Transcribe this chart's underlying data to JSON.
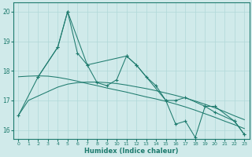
{
  "xlabel": "Humidex (Indice chaleur)",
  "xlim": [
    -0.5,
    23.5
  ],
  "ylim": [
    15.7,
    20.3
  ],
  "yticks": [
    16,
    17,
    18,
    19,
    20
  ],
  "xticks": [
    0,
    1,
    2,
    3,
    4,
    5,
    6,
    7,
    8,
    9,
    10,
    11,
    12,
    13,
    14,
    15,
    16,
    17,
    18,
    19,
    20,
    21,
    22,
    23
  ],
  "bg_color": "#d0eaea",
  "grid_color": "#b0d8d8",
  "line_color": "#1e7b6e",
  "line1": {
    "x": [
      2,
      4,
      5,
      6,
      7,
      8,
      9,
      10,
      11,
      12,
      13,
      14,
      15,
      16,
      17,
      19,
      20,
      22,
      23
    ],
    "y": [
      17.8,
      18.8,
      20.0,
      18.6,
      18.2,
      17.6,
      17.5,
      17.7,
      18.5,
      18.2,
      17.8,
      17.5,
      17.0,
      17.0,
      17.1,
      16.8,
      16.8,
      16.3,
      15.85
    ]
  },
  "line2": {
    "x": [
      0,
      2,
      4,
      5,
      7,
      11,
      12,
      15,
      16,
      17,
      18,
      19,
      20,
      22,
      23
    ],
    "y": [
      16.5,
      17.8,
      18.8,
      20.0,
      18.2,
      18.5,
      18.2,
      17.0,
      16.2,
      16.3,
      15.75,
      16.8,
      16.6,
      16.3,
      15.85
    ]
  },
  "line3": {
    "x": [
      0,
      1,
      2,
      3,
      4,
      5,
      6,
      7,
      8,
      9,
      10,
      11,
      12,
      13,
      14,
      15,
      16,
      17,
      18,
      19,
      20,
      21,
      22,
      23
    ],
    "y": [
      17.8,
      17.82,
      17.83,
      17.82,
      17.78,
      17.72,
      17.65,
      17.57,
      17.5,
      17.42,
      17.35,
      17.28,
      17.2,
      17.12,
      17.05,
      16.97,
      16.88,
      16.78,
      16.67,
      16.55,
      16.43,
      16.3,
      16.18,
      16.05
    ]
  },
  "line4": {
    "x": [
      0,
      1,
      2,
      3,
      4,
      5,
      6,
      7,
      8,
      9,
      10,
      11,
      12,
      13,
      14,
      15,
      16,
      17,
      18,
      19,
      20,
      21,
      22,
      23
    ],
    "y": [
      16.5,
      17.0,
      17.15,
      17.3,
      17.45,
      17.55,
      17.6,
      17.62,
      17.62,
      17.6,
      17.57,
      17.52,
      17.46,
      17.4,
      17.33,
      17.25,
      17.17,
      17.08,
      16.98,
      16.87,
      16.75,
      16.62,
      16.48,
      16.35
    ]
  }
}
